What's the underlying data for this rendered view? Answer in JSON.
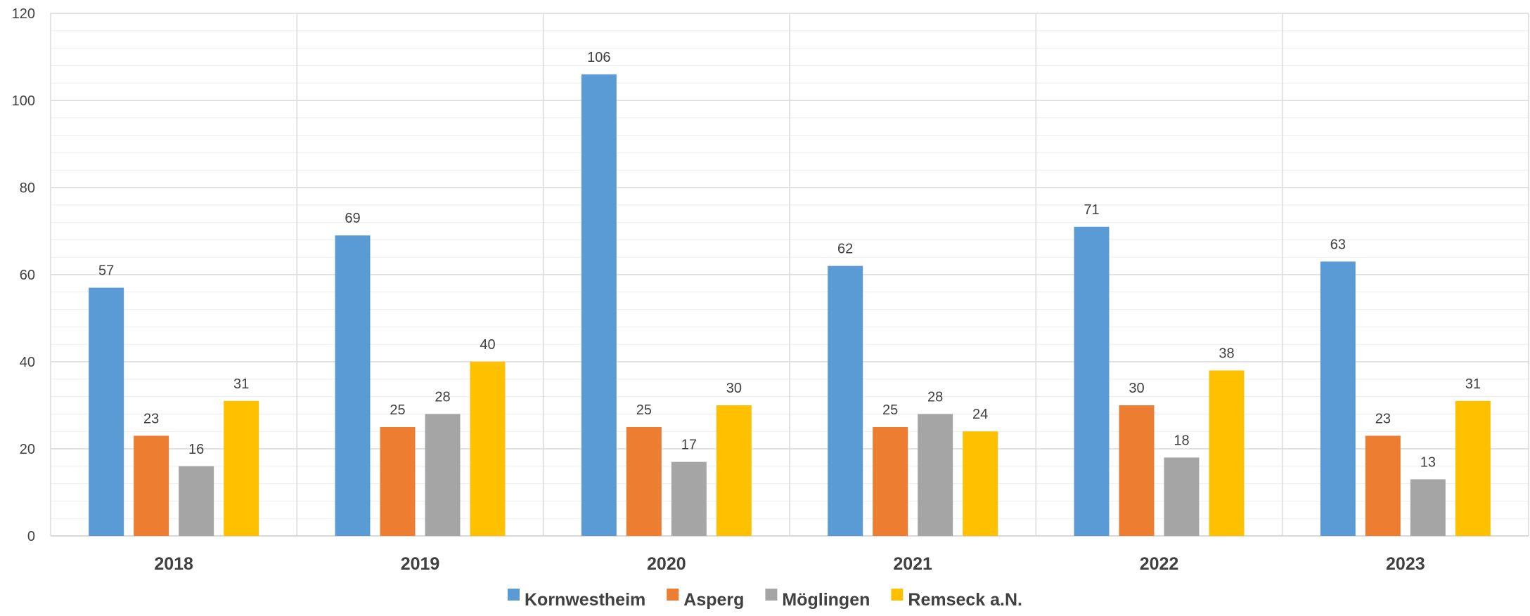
{
  "chart_data": {
    "type": "bar",
    "title": "",
    "xlabel": "",
    "ylabel": "",
    "categories": [
      "2018",
      "2019",
      "2020",
      "2021",
      "2022",
      "2023"
    ],
    "series": [
      {
        "name": "Kornwestheim",
        "color": "#5B9BD5",
        "values": [
          57,
          69,
          106,
          62,
          71,
          63
        ]
      },
      {
        "name": "Asperg",
        "color": "#ED7D31",
        "values": [
          23,
          25,
          25,
          25,
          30,
          23
        ]
      },
      {
        "name": "Möglingen",
        "color": "#A5A5A5",
        "values": [
          16,
          28,
          17,
          28,
          18,
          13
        ]
      },
      {
        "name": "Remseck a.N.",
        "color": "#FFC000",
        "values": [
          31,
          40,
          30,
          24,
          38,
          31
        ]
      }
    ],
    "ylim": [
      0,
      120
    ],
    "y_ticks": [
      0,
      20,
      40,
      60,
      80,
      100,
      120
    ],
    "grid": true,
    "data_labels": true,
    "legend_position": "bottom"
  }
}
